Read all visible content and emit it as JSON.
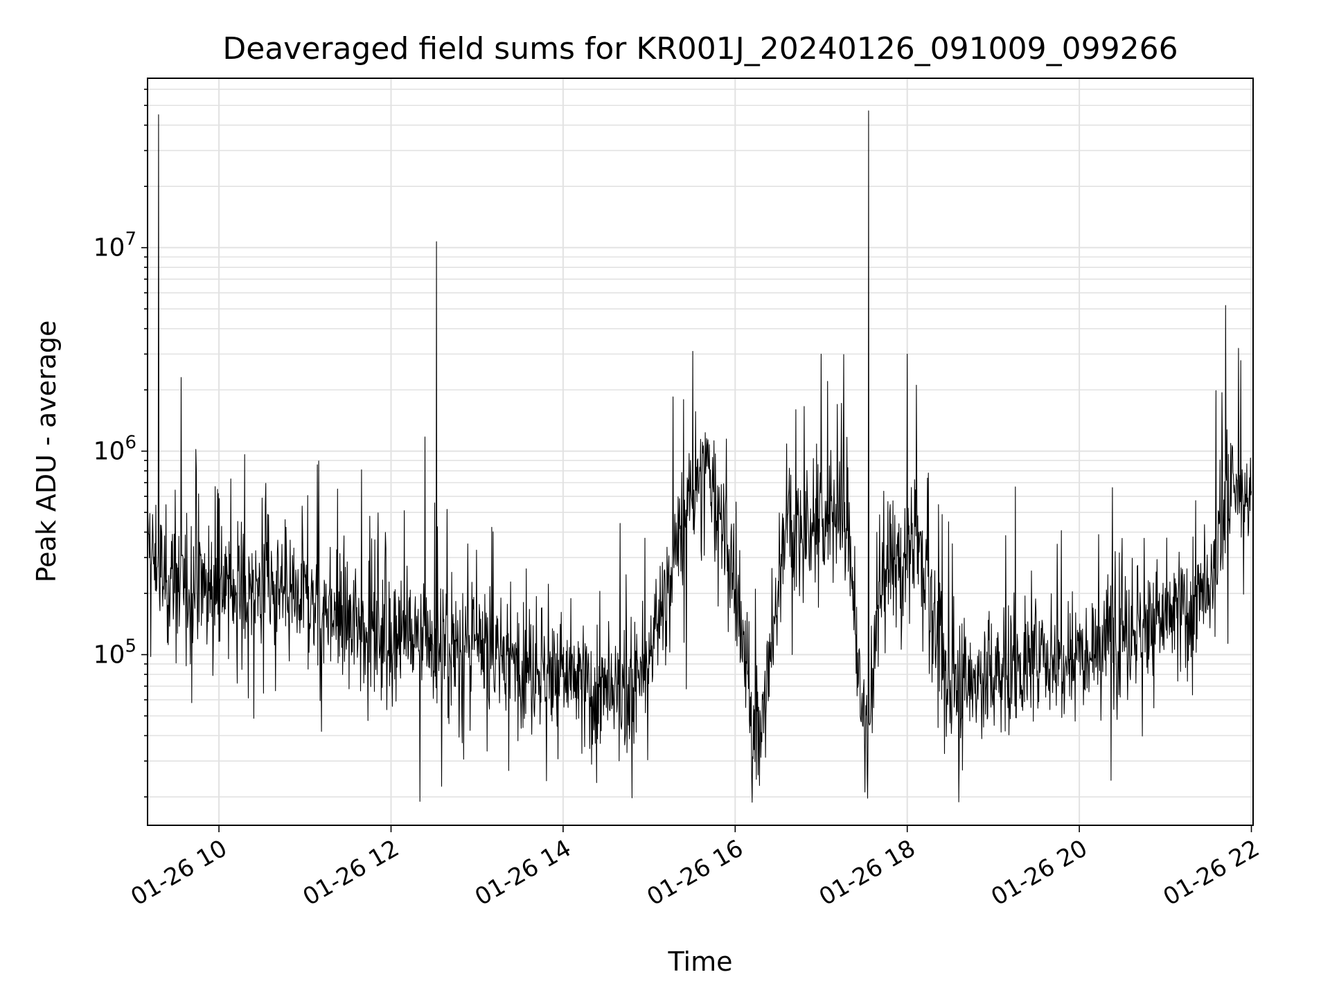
{
  "chart_data": {
    "type": "line",
    "title": "Deaveraged field sums for KR001J_20240126_091009_099266",
    "xlabel": "Time",
    "ylabel": "Peak ADU - average",
    "x_ticks": [
      "01-26 10",
      "01-26 12",
      "01-26 14",
      "01-26 16",
      "01-26 18",
      "01-26 20",
      "01-26 22"
    ],
    "x_tick_hours": [
      10,
      12,
      14,
      16,
      18,
      20,
      22
    ],
    "y_scale": "log",
    "y_ticks": [
      {
        "value": 100000,
        "base": "10",
        "exp": "5"
      },
      {
        "value": 1000000,
        "base": "10",
        "exp": "6"
      },
      {
        "value": 10000000,
        "base": "10",
        "exp": "7"
      }
    ],
    "xlim_hours": [
      9.17,
      22.02
    ],
    "ylim": [
      14500,
      68000000
    ],
    "grid": true,
    "line_color": "#000000",
    "series": [
      {
        "x_hours": [
          9.17,
          9.3,
          9.5,
          9.75,
          10.0,
          10.25,
          10.5,
          10.75,
          11.0,
          11.25,
          11.5,
          11.75,
          12.0,
          12.25,
          12.5,
          12.75,
          13.0,
          13.25,
          13.5,
          13.75,
          14.0,
          14.25,
          14.5,
          14.75,
          14.95,
          15.1,
          15.25,
          15.4,
          15.55,
          15.7,
          15.8,
          15.95,
          16.1,
          16.2,
          16.3,
          16.45,
          16.55,
          16.7,
          16.85,
          17.0,
          17.1,
          17.2,
          17.3,
          17.4,
          17.47,
          17.55,
          17.65,
          17.8,
          17.95,
          18.1,
          18.2,
          18.3,
          18.4,
          18.6,
          18.8,
          19.0,
          19.25,
          19.5,
          19.75,
          20.0,
          20.25,
          20.5,
          20.75,
          21.0,
          21.25,
          21.45,
          21.55,
          21.65,
          21.75,
          21.85,
          22.0
        ],
        "y_median": [
          350000,
          250000,
          220000,
          230000,
          220000,
          210000,
          210000,
          200000,
          190000,
          170000,
          150000,
          140000,
          130000,
          120000,
          110000,
          110000,
          105000,
          100000,
          95000,
          85000,
          80000,
          70000,
          60000,
          65000,
          80000,
          150000,
          250000,
          450000,
          700000,
          800000,
          550000,
          250000,
          100000,
          50000,
          45000,
          120000,
          400000,
          450000,
          350000,
          450000,
          500000,
          550000,
          450000,
          150000,
          45000,
          40000,
          150000,
          300000,
          300000,
          400000,
          300000,
          150000,
          80000,
          70000,
          75000,
          80000,
          85000,
          95000,
          100000,
          110000,
          120000,
          130000,
          140000,
          150000,
          170000,
          180000,
          200000,
          500000,
          600000,
          600000,
          600000
        ],
        "spikes": [
          {
            "x_hours": 9.3,
            "y": 45000000
          },
          {
            "x_hours": 12.53,
            "y": 10700000
          },
          {
            "x_hours": 17.55,
            "y": 47000000
          },
          {
            "x_hours": 21.7,
            "y": 5200000
          },
          {
            "x_hours": 17.0,
            "y": 3000000
          },
          {
            "x_hours": 18.0,
            "y": 3000000
          },
          {
            "x_hours": 21.85,
            "y": 3200000
          }
        ],
        "y_min": 18000
      }
    ]
  }
}
